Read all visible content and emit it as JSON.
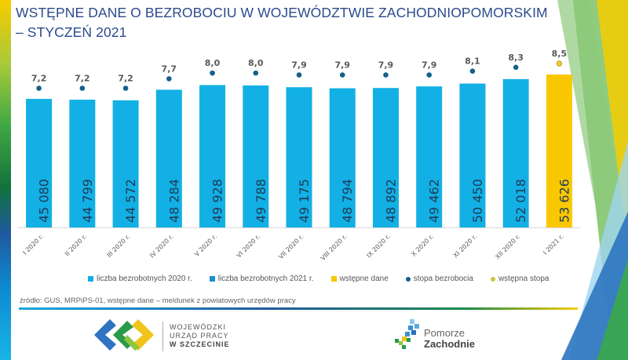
{
  "title": {
    "line1": "WSTĘPNE DANE O BEZROBOCIU W WOJEWÓDZTWIE ZACHODNIOPOMORSKIM",
    "line2": "– STYCZEŃ 2021"
  },
  "chart_data": {
    "type": "bar",
    "title": "WSTĘPNE DANE O BEZROBOCIU W WOJEWÓDZTWIE ZACHODNIOPOMORSKIM – STYCZEŃ 2021",
    "xlabel": "",
    "ylabel": "",
    "ylim": [
      0,
      56000
    ],
    "y2lim": [
      0,
      11.8
    ],
    "grid": false,
    "legend_position": "bottom",
    "categories": [
      "I 2020 r.",
      "II 2020 r.",
      "III 2020 r.",
      "IV 2020 r.",
      "V 2020 r.",
      "VI 2020 r.",
      "VII 2020 r.",
      "VIII 2020 r.",
      "IX 2020 r.",
      "X 2020 r.",
      "XI 2020 r.",
      "XII 2020 r.",
      "I 2021 r."
    ],
    "series": [
      {
        "name": "liczba bezrobotnych 2020 r.",
        "kind": "bar",
        "color": "#12b0e4",
        "values": [
          45080,
          44799,
          44572,
          48284,
          49928,
          49788,
          49175,
          48794,
          48892,
          49462,
          50450,
          52018,
          null
        ],
        "labels": [
          "45 080",
          "44 799",
          "44 572",
          "48 284",
          "49 928",
          "49 788",
          "49 175",
          "48 794",
          "48 892",
          "49 462",
          "50 450",
          "52 018",
          null
        ]
      },
      {
        "name": "liczba bezrobotnych 2021 r.",
        "kind": "bar",
        "color": "#1a8fd0",
        "values": [
          null,
          null,
          null,
          null,
          null,
          null,
          null,
          null,
          null,
          null,
          null,
          null,
          null
        ]
      },
      {
        "name": "wstępne dane",
        "kind": "bar",
        "color": "#f9c800",
        "values": [
          null,
          null,
          null,
          null,
          null,
          null,
          null,
          null,
          null,
          null,
          null,
          null,
          53626
        ],
        "labels": [
          null,
          null,
          null,
          null,
          null,
          null,
          null,
          null,
          null,
          null,
          null,
          null,
          "53 626"
        ]
      },
      {
        "name": "stopa bezrobocia",
        "kind": "dot",
        "axis": "secondary",
        "color": "#14608a",
        "values": [
          7.2,
          7.2,
          7.2,
          7.7,
          8.0,
          8.0,
          7.9,
          7.9,
          7.9,
          7.9,
          8.1,
          8.3,
          null
        ],
        "labels": [
          "7,2",
          "7,2",
          "7,2",
          "7,7",
          "8,0",
          "8,0",
          "7,9",
          "7,9",
          "7,9",
          "7,9",
          "8,1",
          "8,3",
          null
        ]
      },
      {
        "name": "wstępna stopa",
        "kind": "dot",
        "axis": "secondary",
        "color": "#f4c542",
        "values": [
          null,
          null,
          null,
          null,
          null,
          null,
          null,
          null,
          null,
          null,
          null,
          null,
          8.5
        ],
        "labels": [
          null,
          null,
          null,
          null,
          null,
          null,
          null,
          null,
          null,
          null,
          null,
          null,
          "8,5"
        ]
      }
    ]
  },
  "legend": [
    {
      "label": "liczba bezrobotnych 2020 r.",
      "shape": "square",
      "color": "#12b0e4"
    },
    {
      "label": "liczba bezrobotnych 2021 r.",
      "shape": "square",
      "color": "#1a8fd0"
    },
    {
      "label": "wstępne dane",
      "shape": "square",
      "color": "#f9c800"
    },
    {
      "label": "stopa bezrobocia",
      "shape": "dot",
      "color": "#14608a"
    },
    {
      "label": "wstępna stopa",
      "shape": "dot",
      "color": "#c8c83a"
    }
  ],
  "source": "źródło: GUS, MRPiPS-01, wstępne dane – meldunek z powiatowych urzędów pracy",
  "logos": {
    "wup": {
      "line1": "WOJEWÓDZKI",
      "line2": "URZĄD PRACY",
      "line3": "W  SZCZECINIE"
    },
    "pz": {
      "line1": "Pomorze",
      "line2": "Zachodnie"
    }
  }
}
